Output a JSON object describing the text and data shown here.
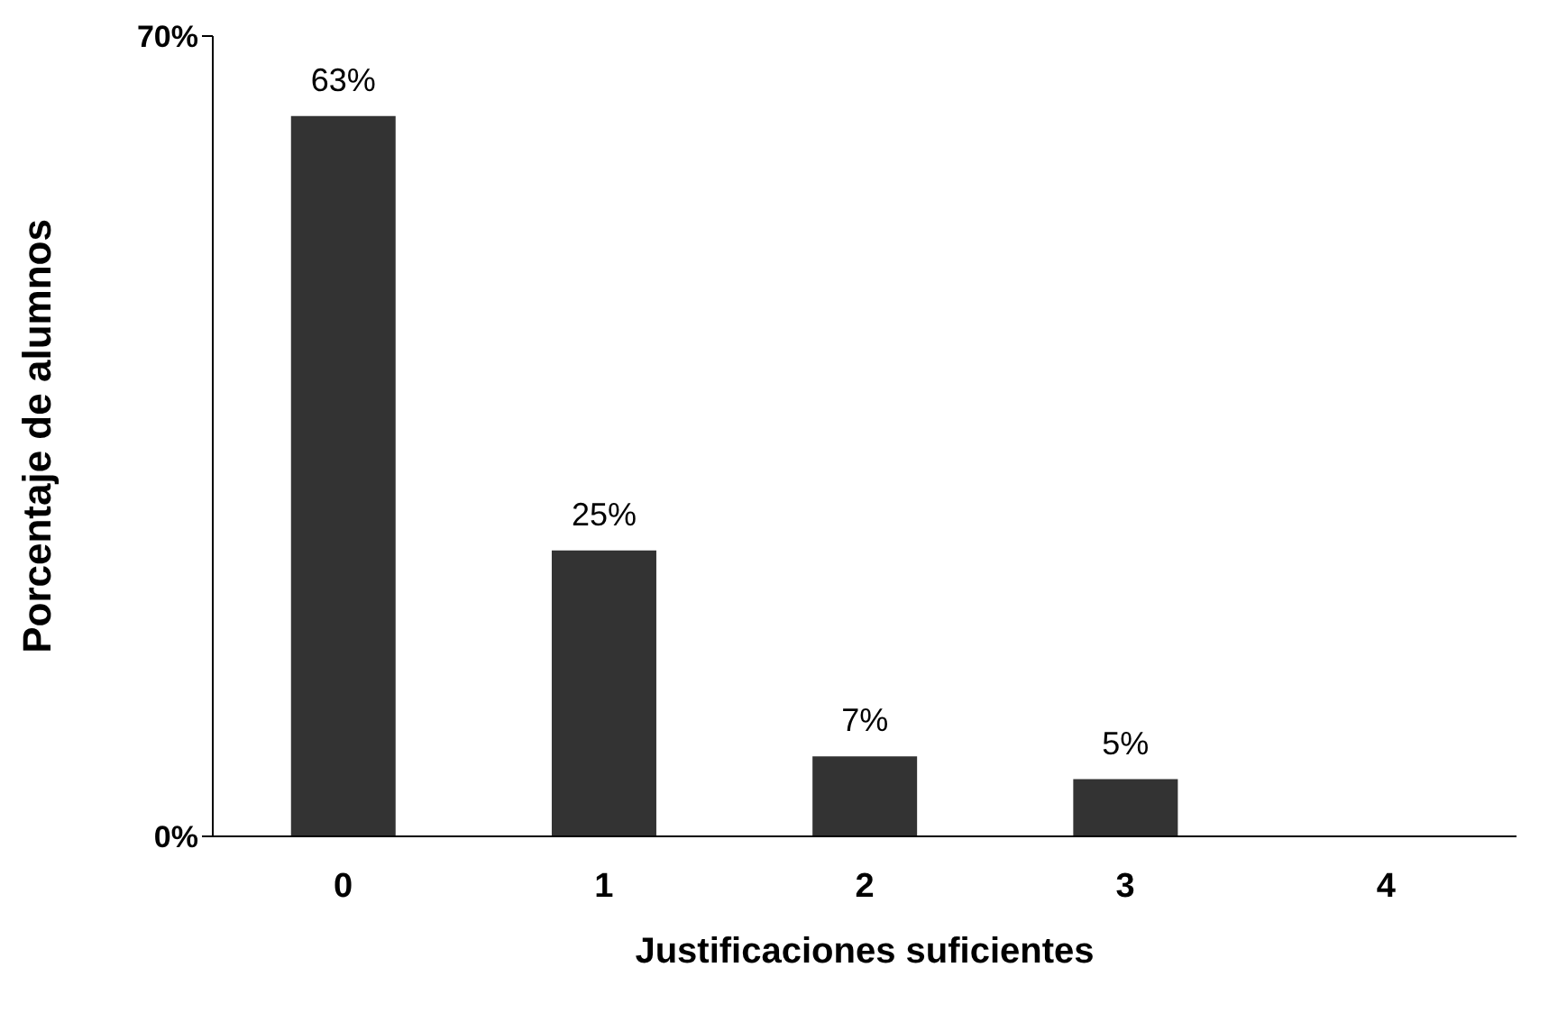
{
  "chart_data": {
    "type": "bar",
    "xlabel": "Justificaciones suficientes",
    "ylabel": "Porcentaje de alumnos",
    "categories": [
      "0",
      "1",
      "2",
      "3",
      "4"
    ],
    "values": [
      63,
      25,
      7,
      5,
      0
    ],
    "value_labels": [
      "63%",
      "25%",
      "7%",
      "5%",
      null
    ],
    "color": "#333333",
    "ylim": [
      0,
      70
    ],
    "yticks": [
      {
        "value": 0,
        "label": "0%"
      },
      {
        "value": 70,
        "label": "70%"
      }
    ],
    "grid": false
  }
}
